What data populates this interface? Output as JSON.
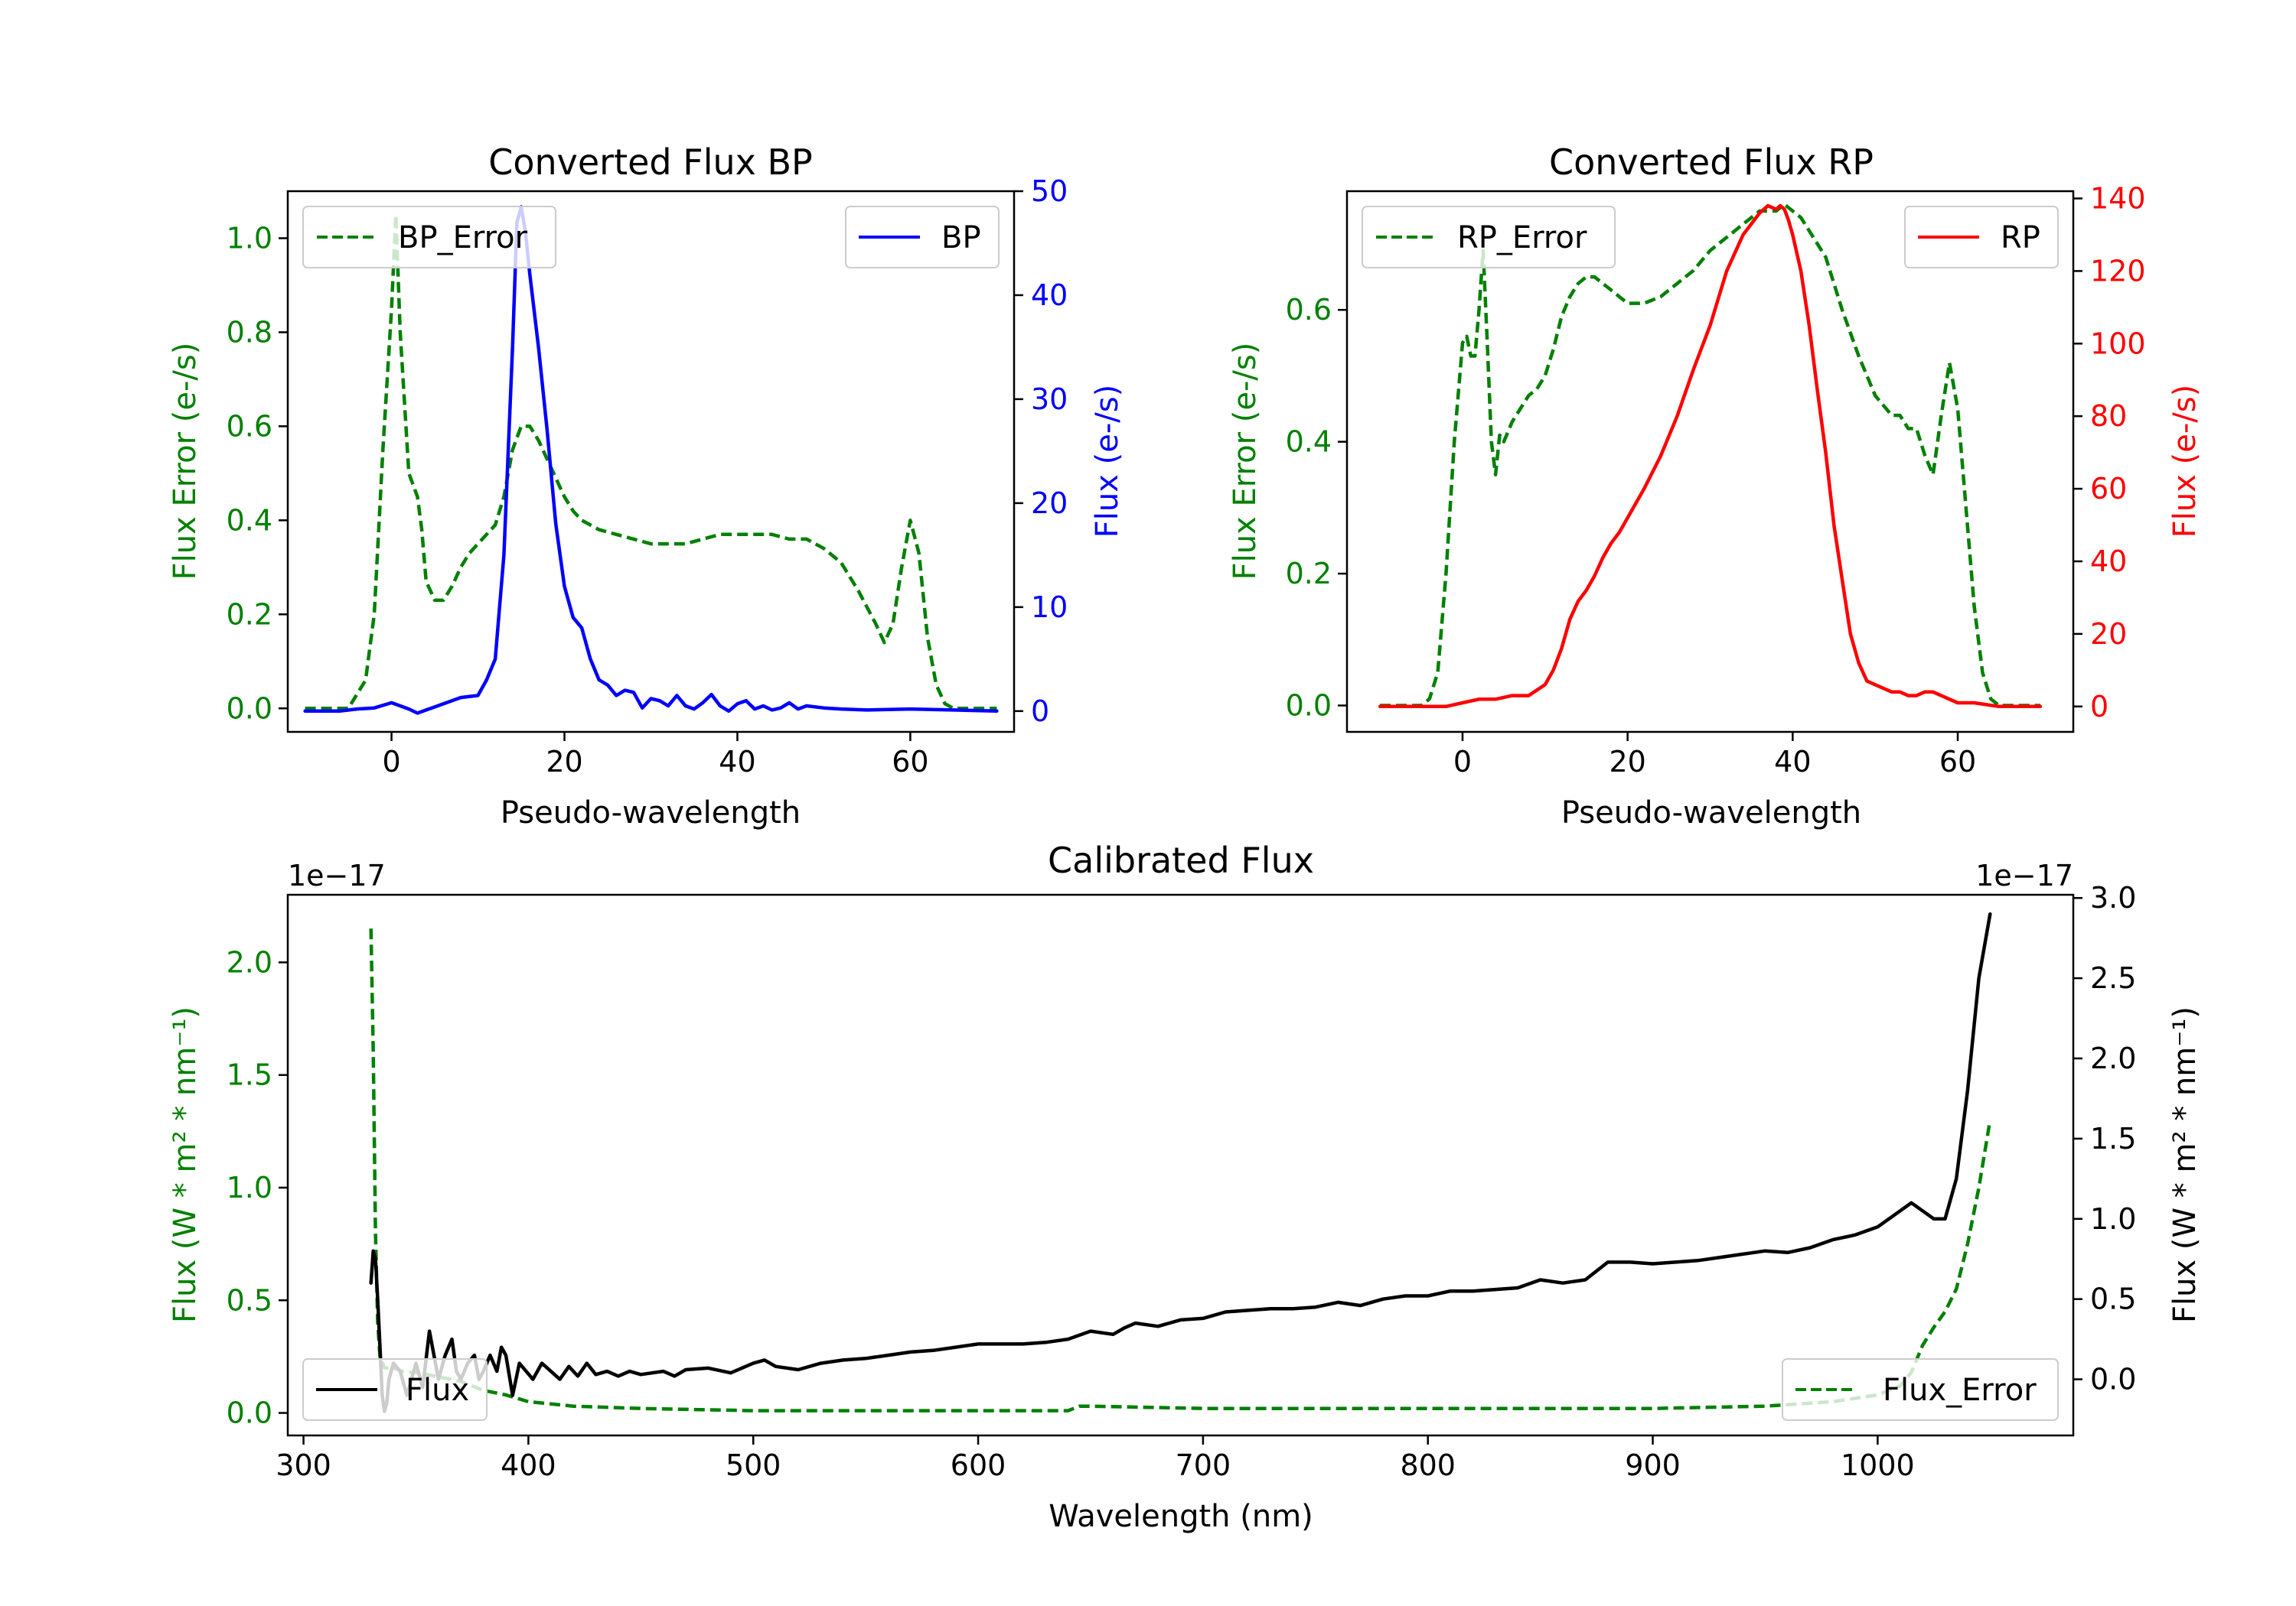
{
  "chart_data": [
    {
      "id": "bp",
      "type": "line",
      "title": "Converted Flux BP",
      "xlabel": "Pseudo-wavelength",
      "xlim": [
        -12,
        72
      ],
      "xticks": [
        0,
        20,
        40,
        60
      ],
      "left_axis": {
        "label": "Flux Error (e-/s)",
        "color": "#008000",
        "lim": [
          -0.05,
          1.1
        ],
        "ticks": [
          0.0,
          0.2,
          0.4,
          0.6,
          0.8,
          1.0
        ],
        "tick_labels": [
          "0.0",
          "0.2",
          "0.4",
          "0.6",
          "0.8",
          "1.0"
        ],
        "offset_label": ""
      },
      "right_axis": {
        "label": "Flux (e-/s)",
        "color": "#0000ff",
        "lim": [
          -2,
          50
        ],
        "ticks": [
          0,
          10,
          20,
          30,
          40,
          50
        ],
        "tick_labels": [
          "0",
          "10",
          "20",
          "30",
          "40",
          "50"
        ],
        "offset_label": ""
      },
      "legend_left": {
        "text": "BP_Error",
        "position": "upper left"
      },
      "legend_right": {
        "text": "BP",
        "position": "upper right"
      },
      "series": [
        {
          "name": "BP_Error",
          "axis": "left",
          "color": "#008000",
          "dash": true,
          "x": [
            -10,
            -5,
            -3,
            -2,
            -1,
            0,
            0.5,
            1,
            2,
            3,
            3.5,
            4,
            5,
            6,
            7,
            8,
            9,
            10,
            11,
            12,
            13,
            14,
            15,
            16,
            17,
            18,
            19,
            20,
            21,
            22,
            24,
            26,
            28,
            30,
            32,
            34,
            36,
            38,
            40,
            42,
            44,
            46,
            48,
            50,
            52,
            54,
            56,
            57,
            58,
            59,
            60,
            61,
            62,
            63,
            64,
            65,
            66,
            68,
            70
          ],
          "y": [
            0.0,
            0.0,
            0.06,
            0.2,
            0.55,
            0.85,
            1.05,
            0.8,
            0.5,
            0.45,
            0.38,
            0.27,
            0.23,
            0.23,
            0.26,
            0.3,
            0.33,
            0.35,
            0.37,
            0.39,
            0.45,
            0.55,
            0.6,
            0.6,
            0.57,
            0.53,
            0.49,
            0.45,
            0.42,
            0.4,
            0.38,
            0.37,
            0.36,
            0.35,
            0.35,
            0.35,
            0.36,
            0.37,
            0.37,
            0.37,
            0.37,
            0.36,
            0.36,
            0.34,
            0.31,
            0.25,
            0.18,
            0.14,
            0.18,
            0.3,
            0.4,
            0.33,
            0.15,
            0.05,
            0.01,
            0.0,
            0.0,
            0.0,
            0.0
          ]
        },
        {
          "name": "BP",
          "axis": "right",
          "color": "#0000ff",
          "dash": false,
          "x": [
            -10,
            -8,
            -6,
            -4,
            -2,
            0,
            1,
            2,
            3,
            4,
            5,
            6,
            8,
            10,
            11,
            12,
            13,
            14,
            14.5,
            15,
            15.5,
            16,
            17,
            18,
            19,
            20,
            21,
            22,
            23,
            24,
            25,
            26,
            27,
            28,
            29,
            30,
            31,
            32,
            33,
            34,
            35,
            36,
            37,
            38,
            39,
            40,
            41,
            42,
            43,
            44,
            45,
            46,
            47,
            48,
            50,
            52,
            55,
            60,
            65,
            70
          ],
          "y": [
            0,
            0,
            0,
            0.2,
            0.3,
            0.8,
            0.5,
            0.2,
            -0.2,
            0.1,
            0.4,
            0.7,
            1.3,
            1.5,
            3,
            5,
            15,
            35,
            47,
            48.5,
            46,
            42,
            35,
            27,
            18,
            12,
            9,
            8,
            5,
            3,
            2.5,
            1.5,
            2,
            1.8,
            0.3,
            1.2,
            1,
            0.5,
            1.5,
            0.5,
            0.2,
            0.8,
            1.6,
            0.5,
            0,
            0.7,
            1,
            0.2,
            0.5,
            0.1,
            0.3,
            0.8,
            0.2,
            0.5,
            0.3,
            0.2,
            0.1,
            0.2,
            0.1,
            0
          ]
        }
      ]
    },
    {
      "id": "rp",
      "type": "line",
      "title": "Converted Flux RP",
      "xlabel": "Pseudo-wavelength",
      "xlim": [
        -14,
        74
      ],
      "xticks": [
        0,
        20,
        40,
        60
      ],
      "left_axis": {
        "label": "Flux Error (e-/s)",
        "color": "#008000",
        "lim": [
          -0.04,
          0.78
        ],
        "ticks": [
          0.0,
          0.2,
          0.4,
          0.6
        ],
        "tick_labels": [
          "0.0",
          "0.2",
          "0.4",
          "0.6"
        ],
        "offset_label": ""
      },
      "right_axis": {
        "label": "Flux (e-/s)",
        "color": "#ff0000",
        "lim": [
          -7,
          142
        ],
        "ticks": [
          0,
          20,
          40,
          60,
          80,
          100,
          120,
          140
        ],
        "tick_labels": [
          "0",
          "20",
          "40",
          "60",
          "80",
          "100",
          "120",
          "140"
        ],
        "offset_label": ""
      },
      "legend_left": {
        "text": "RP_Error",
        "position": "upper left"
      },
      "legend_right": {
        "text": "RP",
        "position": "upper right"
      },
      "series": [
        {
          "name": "RP_Error",
          "axis": "left",
          "color": "#008000",
          "dash": true,
          "x": [
            -10,
            -5,
            -4,
            -3,
            -2,
            -1,
            0,
            0.5,
            1,
            1.5,
            2,
            2.5,
            3,
            3.5,
            4,
            4.5,
            5,
            6,
            7,
            8,
            9,
            10,
            11,
            12,
            13,
            14,
            15,
            16,
            17,
            18,
            19,
            20,
            22,
            24,
            26,
            28,
            30,
            32,
            34,
            36,
            38,
            39,
            40,
            41,
            42,
            44,
            46,
            48,
            50,
            52,
            53,
            54,
            55,
            56,
            57,
            58,
            59,
            60,
            61,
            62,
            63,
            64,
            65,
            70
          ],
          "y": [
            0.0,
            0.0,
            0.01,
            0.05,
            0.2,
            0.4,
            0.55,
            0.56,
            0.53,
            0.53,
            0.6,
            0.69,
            0.55,
            0.4,
            0.35,
            0.41,
            0.4,
            0.43,
            0.45,
            0.47,
            0.48,
            0.5,
            0.54,
            0.59,
            0.62,
            0.64,
            0.65,
            0.65,
            0.64,
            0.63,
            0.62,
            0.61,
            0.61,
            0.62,
            0.64,
            0.66,
            0.69,
            0.71,
            0.73,
            0.75,
            0.75,
            0.76,
            0.75,
            0.74,
            0.72,
            0.68,
            0.6,
            0.53,
            0.47,
            0.44,
            0.44,
            0.42,
            0.42,
            0.38,
            0.35,
            0.44,
            0.52,
            0.45,
            0.3,
            0.15,
            0.05,
            0.01,
            0.0,
            0.0
          ]
        },
        {
          "name": "RP",
          "axis": "right",
          "color": "#ff0000",
          "dash": false,
          "x": [
            -10,
            -5,
            -2,
            0,
            2,
            4,
            6,
            8,
            10,
            11,
            12,
            13,
            14,
            15,
            16,
            17,
            18,
            19,
            20,
            22,
            24,
            26,
            28,
            30,
            32,
            34,
            36,
            37,
            38,
            38.5,
            39,
            39.5,
            40,
            41,
            42,
            43,
            44,
            45,
            46,
            47,
            48,
            49,
            50,
            51,
            52,
            53,
            54,
            55,
            56,
            57,
            58,
            59,
            60,
            62,
            65,
            70
          ],
          "y": [
            0,
            0,
            0,
            1,
            2,
            2,
            3,
            3,
            6,
            10,
            16,
            24,
            29,
            32,
            36,
            41,
            45,
            48,
            52,
            60,
            69,
            80,
            93,
            105,
            120,
            130,
            136,
            138,
            137,
            138,
            137,
            134,
            130,
            120,
            105,
            87,
            70,
            50,
            35,
            20,
            12,
            7,
            6,
            5,
            4,
            4,
            3,
            3,
            4,
            4,
            3,
            2,
            1,
            1,
            0,
            0
          ]
        }
      ]
    },
    {
      "id": "cal",
      "type": "line",
      "title": "Calibrated Flux",
      "xlabel": "Wavelength (nm)",
      "xlim": [
        293,
        1087
      ],
      "xticks": [
        300,
        400,
        500,
        600,
        700,
        800,
        900,
        1000
      ],
      "left_axis": {
        "label": "Flux (W * m² * nm⁻¹)",
        "color": "#008000",
        "lim": [
          -0.1,
          2.3
        ],
        "ticks": [
          0.0,
          0.5,
          1.0,
          1.5,
          2.0
        ],
        "tick_labels": [
          "0.0",
          "0.5",
          "1.0",
          "1.5",
          "2.0"
        ],
        "offset_label": "1e−17"
      },
      "right_axis": {
        "label": "Flux (W * m² * nm⁻¹)",
        "color": "#000000",
        "lim": [
          -0.35,
          3.02
        ],
        "ticks": [
          0.0,
          0.5,
          1.0,
          1.5,
          2.0,
          2.5,
          3.0
        ],
        "tick_labels": [
          "0.0",
          "0.5",
          "1.0",
          "1.5",
          "2.0",
          "2.5",
          "3.0"
        ],
        "offset_label": "1e−17"
      },
      "legend_left": {
        "text": "Flux",
        "position": "lower left"
      },
      "legend_right": {
        "text": "Flux_Error",
        "position": "lower right"
      },
      "series": [
        {
          "name": "Flux_Error",
          "axis": "left",
          "color": "#008000",
          "dash": true,
          "x": [
            330,
            331,
            332,
            333,
            334,
            336,
            340,
            345,
            350,
            360,
            370,
            380,
            390,
            400,
            420,
            450,
            500,
            550,
            600,
            640,
            645,
            650,
            700,
            800,
            900,
            950,
            980,
            1000,
            1010,
            1015,
            1020,
            1025,
            1030,
            1035,
            1040,
            1045,
            1050
          ],
          "y": [
            2.15,
            1.6,
            0.8,
            0.4,
            0.25,
            0.2,
            0.2,
            0.18,
            0.18,
            0.16,
            0.14,
            0.1,
            0.08,
            0.05,
            0.03,
            0.02,
            0.01,
            0.01,
            0.01,
            0.01,
            0.03,
            0.03,
            0.02,
            0.02,
            0.02,
            0.03,
            0.05,
            0.08,
            0.12,
            0.18,
            0.3,
            0.38,
            0.45,
            0.55,
            0.75,
            1.0,
            1.3
          ]
        },
        {
          "name": "Flux",
          "axis": "right",
          "color": "#000000",
          "dash": false,
          "x": [
            330,
            331,
            332,
            333,
            334,
            335,
            336,
            337,
            338,
            340,
            343,
            346,
            350,
            353,
            356,
            358,
            360,
            363,
            366,
            368,
            370,
            373,
            376,
            378,
            380,
            383,
            386,
            388,
            390,
            393,
            396,
            399,
            402,
            406,
            410,
            414,
            418,
            422,
            426,
            430,
            435,
            440,
            445,
            450,
            455,
            460,
            465,
            470,
            480,
            490,
            500,
            505,
            510,
            520,
            530,
            540,
            550,
            560,
            570,
            580,
            590,
            600,
            610,
            620,
            630,
            640,
            650,
            660,
            665,
            670,
            680,
            690,
            700,
            710,
            720,
            730,
            740,
            750,
            760,
            770,
            780,
            790,
            800,
            810,
            820,
            830,
            840,
            850,
            860,
            870,
            880,
            890,
            900,
            910,
            920,
            930,
            940,
            950,
            960,
            970,
            980,
            990,
            1000,
            1010,
            1015,
            1020,
            1025,
            1030,
            1035,
            1040,
            1045,
            1050
          ],
          "y": [
            0.6,
            0.8,
            0.75,
            0.5,
            0.2,
            -0.1,
            -0.2,
            -0.15,
            0.0,
            0.1,
            0.05,
            -0.1,
            0.1,
            -0.05,
            0.3,
            0.15,
            0.0,
            0.15,
            0.25,
            0.05,
            0.0,
            0.1,
            0.15,
            0.0,
            0.05,
            0.15,
            0.05,
            0.2,
            0.15,
            -0.1,
            0.1,
            0.05,
            0.0,
            0.1,
            0.05,
            0.0,
            0.08,
            0.02,
            0.1,
            0.03,
            0.05,
            0.02,
            0.05,
            0.03,
            0.04,
            0.05,
            0.02,
            0.06,
            0.07,
            0.04,
            0.1,
            0.12,
            0.08,
            0.06,
            0.1,
            0.12,
            0.13,
            0.15,
            0.17,
            0.18,
            0.2,
            0.22,
            0.22,
            0.22,
            0.23,
            0.25,
            0.3,
            0.28,
            0.32,
            0.35,
            0.33,
            0.37,
            0.38,
            0.42,
            0.43,
            0.44,
            0.44,
            0.45,
            0.48,
            0.46,
            0.5,
            0.52,
            0.52,
            0.55,
            0.55,
            0.56,
            0.57,
            0.62,
            0.6,
            0.62,
            0.73,
            0.73,
            0.72,
            0.73,
            0.74,
            0.76,
            0.78,
            0.8,
            0.79,
            0.82,
            0.87,
            0.9,
            0.95,
            1.05,
            1.1,
            1.05,
            1.0,
            1.0,
            1.25,
            1.8,
            2.5,
            2.9
          ]
        }
      ]
    }
  ]
}
